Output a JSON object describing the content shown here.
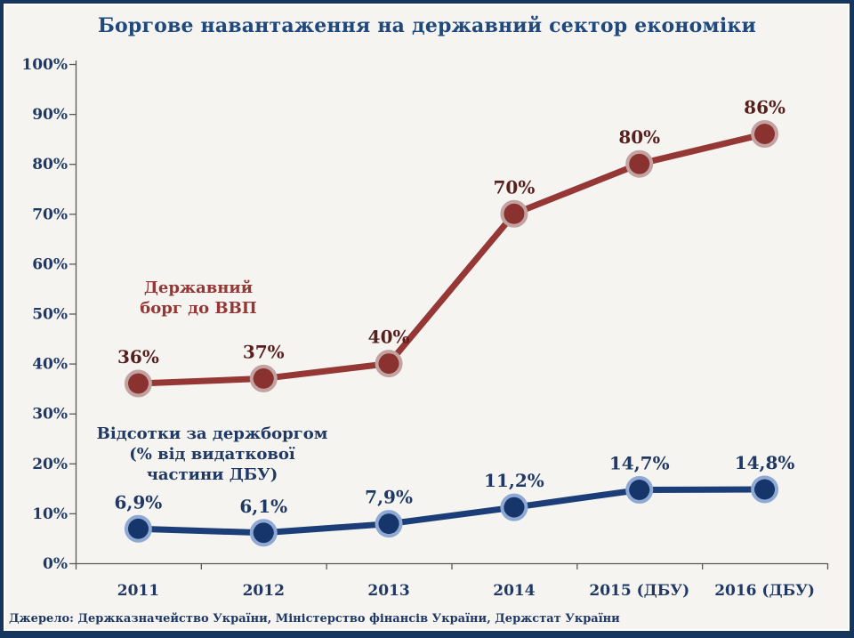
{
  "title": "Боргове навантаження на державний сектор економіки",
  "footer": "Джерело: Держказначейство України, Міністерство фінансів України, Держстат України",
  "colors": {
    "frame_border": "#17365d",
    "background": "#f5f4f0",
    "title_text": "#1F497D",
    "axis_text": "#1F3864",
    "axis_line": "#595959",
    "debt_series": "#953735",
    "interest_series": "#1b3e78"
  },
  "chart_data": {
    "type": "line",
    "title": "Боргове навантаження на державний сектор економіки",
    "categories": [
      "2011",
      "2012",
      "2013",
      "2014",
      "2015 (ДБУ)",
      "2016 (ДБУ)"
    ],
    "series": [
      {
        "name": "Державний борг до ВВП",
        "legend": "Державний\nборг до ВВП",
        "values": [
          36,
          37,
          40,
          70,
          80,
          86
        ],
        "labels": [
          "36%",
          "37%",
          "40%",
          "70%",
          "80%",
          "86%"
        ],
        "color": "#953735",
        "marker_fill": "#8a3230",
        "marker_ring": "#c2a3a1",
        "label_color": "#571f1e"
      },
      {
        "name": "Відсотки за держборгом (% від видаткової частини ДБУ)",
        "legend": "Відсотки за держборгом\n(% від видаткової\nчастини ДБУ)",
        "values": [
          6.9,
          6.1,
          7.9,
          11.2,
          14.7,
          14.8
        ],
        "labels": [
          "6,9%",
          "6,1%",
          "7,9%",
          "11,2%",
          "14,7%",
          "14,8%"
        ],
        "color": "#1b3e78",
        "marker_fill": "#16356b",
        "marker_ring": "#8ea9d4",
        "label_color": "#1F3864"
      }
    ],
    "y_axis": {
      "min": 0,
      "max": 100,
      "step": 10,
      "tick_labels": [
        "0%",
        "10%",
        "20%",
        "30%",
        "40%",
        "50%",
        "60%",
        "70%",
        "80%",
        "90%",
        "100%"
      ]
    },
    "grid": false,
    "legend_position": "inline-annotations"
  }
}
